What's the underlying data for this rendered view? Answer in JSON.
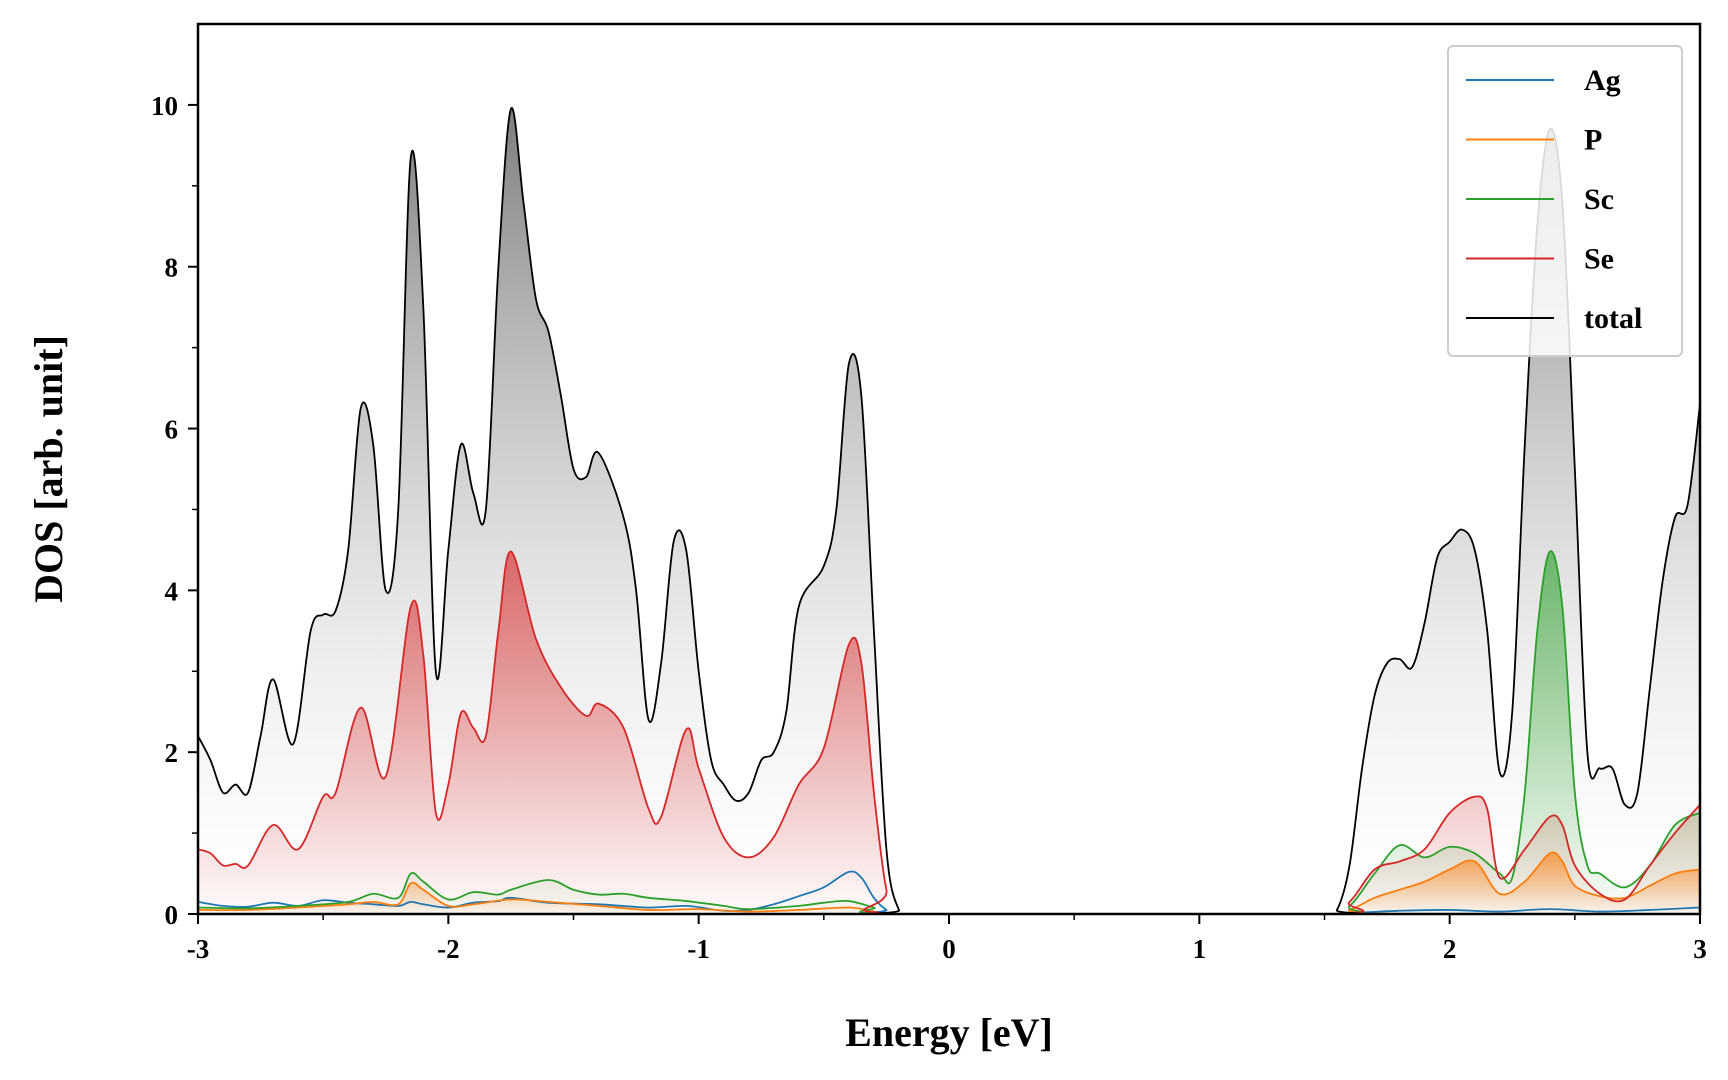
{
  "chart_data": {
    "type": "area",
    "xlabel": "Energy [eV]",
    "ylabel": "DOS [arb. unit]",
    "xlim": [
      -3,
      3
    ],
    "ylim": [
      0,
      11
    ],
    "x_ticks": [
      -3,
      -2,
      -1,
      0,
      1,
      2,
      3
    ],
    "x_tick_labels": [
      "-3",
      "-2",
      "-1",
      "0",
      "1",
      "2",
      "3"
    ],
    "y_ticks": [
      0,
      2,
      4,
      6,
      8,
      10
    ],
    "y_tick_labels": [
      "0",
      "2",
      "4",
      "6",
      "8",
      "10"
    ],
    "grid": false,
    "legend_position": "top-right",
    "series": [
      {
        "name": "Ag",
        "color": "#1f77b4",
        "filled": false,
        "points": [
          [
            -3.0,
            0.15
          ],
          [
            -2.9,
            0.1
          ],
          [
            -2.8,
            0.09
          ],
          [
            -2.7,
            0.14
          ],
          [
            -2.6,
            0.1
          ],
          [
            -2.5,
            0.17
          ],
          [
            -2.4,
            0.14
          ],
          [
            -2.3,
            0.12
          ],
          [
            -2.2,
            0.1
          ],
          [
            -2.15,
            0.15
          ],
          [
            -2.1,
            0.12
          ],
          [
            -2.0,
            0.08
          ],
          [
            -1.9,
            0.14
          ],
          [
            -1.8,
            0.16
          ],
          [
            -1.75,
            0.2
          ],
          [
            -1.6,
            0.14
          ],
          [
            -1.4,
            0.12
          ],
          [
            -1.2,
            0.08
          ],
          [
            -1.05,
            0.1
          ],
          [
            -0.9,
            0.04
          ],
          [
            -0.8,
            0.05
          ],
          [
            -0.7,
            0.12
          ],
          [
            -0.6,
            0.22
          ],
          [
            -0.5,
            0.33
          ],
          [
            -0.4,
            0.52
          ],
          [
            -0.35,
            0.45
          ],
          [
            -0.3,
            0.2
          ],
          [
            -0.25,
            0.05
          ],
          [
            -0.2,
            0.0
          ],
          [
            1.5,
            0.0
          ],
          [
            1.6,
            0.01
          ],
          [
            1.8,
            0.04
          ],
          [
            2.0,
            0.05
          ],
          [
            2.2,
            0.03
          ],
          [
            2.4,
            0.06
          ],
          [
            2.6,
            0.03
          ],
          [
            2.8,
            0.05
          ],
          [
            3.0,
            0.08
          ]
        ]
      },
      {
        "name": "P",
        "color": "#ff7f0e",
        "filled": true,
        "points": [
          [
            -3.0,
            0.05
          ],
          [
            -2.8,
            0.05
          ],
          [
            -2.6,
            0.08
          ],
          [
            -2.4,
            0.12
          ],
          [
            -2.3,
            0.15
          ],
          [
            -2.2,
            0.12
          ],
          [
            -2.15,
            0.38
          ],
          [
            -2.1,
            0.3
          ],
          [
            -2.0,
            0.1
          ],
          [
            -1.9,
            0.12
          ],
          [
            -1.75,
            0.18
          ],
          [
            -1.6,
            0.15
          ],
          [
            -1.4,
            0.1
          ],
          [
            -1.2,
            0.05
          ],
          [
            -1.0,
            0.06
          ],
          [
            -0.8,
            0.03
          ],
          [
            -0.6,
            0.05
          ],
          [
            -0.4,
            0.08
          ],
          [
            -0.3,
            0.03
          ],
          [
            -0.2,
            0.0
          ],
          [
            1.5,
            0.0
          ],
          [
            1.6,
            0.05
          ],
          [
            1.7,
            0.2
          ],
          [
            1.8,
            0.3
          ],
          [
            1.9,
            0.4
          ],
          [
            2.0,
            0.55
          ],
          [
            2.1,
            0.65
          ],
          [
            2.2,
            0.25
          ],
          [
            2.3,
            0.4
          ],
          [
            2.4,
            0.75
          ],
          [
            2.45,
            0.65
          ],
          [
            2.5,
            0.35
          ],
          [
            2.6,
            0.22
          ],
          [
            2.7,
            0.2
          ],
          [
            2.8,
            0.35
          ],
          [
            2.9,
            0.5
          ],
          [
            3.0,
            0.55
          ]
        ]
      },
      {
        "name": "Sc",
        "color": "#2ca02c",
        "filled": true,
        "points": [
          [
            -3.0,
            0.08
          ],
          [
            -2.8,
            0.07
          ],
          [
            -2.6,
            0.1
          ],
          [
            -2.4,
            0.15
          ],
          [
            -2.3,
            0.25
          ],
          [
            -2.2,
            0.2
          ],
          [
            -2.15,
            0.5
          ],
          [
            -2.1,
            0.4
          ],
          [
            -2.0,
            0.18
          ],
          [
            -1.9,
            0.27
          ],
          [
            -1.8,
            0.24
          ],
          [
            -1.75,
            0.3
          ],
          [
            -1.6,
            0.42
          ],
          [
            -1.5,
            0.3
          ],
          [
            -1.4,
            0.24
          ],
          [
            -1.3,
            0.25
          ],
          [
            -1.2,
            0.2
          ],
          [
            -1.05,
            0.16
          ],
          [
            -0.9,
            0.1
          ],
          [
            -0.8,
            0.06
          ],
          [
            -0.6,
            0.1
          ],
          [
            -0.5,
            0.14
          ],
          [
            -0.4,
            0.16
          ],
          [
            -0.3,
            0.08
          ],
          [
            -0.2,
            0.0
          ],
          [
            1.5,
            0.0
          ],
          [
            1.6,
            0.1
          ],
          [
            1.7,
            0.5
          ],
          [
            1.8,
            0.85
          ],
          [
            1.9,
            0.7
          ],
          [
            2.0,
            0.83
          ],
          [
            2.1,
            0.75
          ],
          [
            2.2,
            0.5
          ],
          [
            2.25,
            0.45
          ],
          [
            2.3,
            1.5
          ],
          [
            2.35,
            3.5
          ],
          [
            2.4,
            4.48
          ],
          [
            2.45,
            3.8
          ],
          [
            2.5,
            1.5
          ],
          [
            2.55,
            0.6
          ],
          [
            2.6,
            0.5
          ],
          [
            2.7,
            0.33
          ],
          [
            2.8,
            0.6
          ],
          [
            2.9,
            1.1
          ],
          [
            3.0,
            1.25
          ]
        ]
      },
      {
        "name": "Se",
        "color": "#d62728",
        "filled": true,
        "points": [
          [
            -3.0,
            0.8
          ],
          [
            -2.95,
            0.75
          ],
          [
            -2.9,
            0.6
          ],
          [
            -2.85,
            0.62
          ],
          [
            -2.8,
            0.6
          ],
          [
            -2.7,
            1.1
          ],
          [
            -2.6,
            0.8
          ],
          [
            -2.5,
            1.45
          ],
          [
            -2.45,
            1.5
          ],
          [
            -2.35,
            2.55
          ],
          [
            -2.25,
            1.7
          ],
          [
            -2.15,
            3.8
          ],
          [
            -2.1,
            3.2
          ],
          [
            -2.05,
            1.25
          ],
          [
            -2.0,
            1.6
          ],
          [
            -1.95,
            2.48
          ],
          [
            -1.9,
            2.3
          ],
          [
            -1.85,
            2.2
          ],
          [
            -1.8,
            3.5
          ],
          [
            -1.75,
            4.48
          ],
          [
            -1.65,
            3.4
          ],
          [
            -1.55,
            2.8
          ],
          [
            -1.45,
            2.45
          ],
          [
            -1.4,
            2.6
          ],
          [
            -1.3,
            2.3
          ],
          [
            -1.2,
            1.3
          ],
          [
            -1.15,
            1.2
          ],
          [
            -1.05,
            2.28
          ],
          [
            -1.0,
            1.8
          ],
          [
            -0.9,
            0.95
          ],
          [
            -0.8,
            0.7
          ],
          [
            -0.7,
            0.95
          ],
          [
            -0.6,
            1.6
          ],
          [
            -0.5,
            2.05
          ],
          [
            -0.4,
            3.33
          ],
          [
            -0.35,
            3.1
          ],
          [
            -0.3,
            1.5
          ],
          [
            -0.25,
            0.3
          ],
          [
            -0.2,
            0.0
          ],
          [
            1.5,
            0.0
          ],
          [
            1.6,
            0.15
          ],
          [
            1.7,
            0.55
          ],
          [
            1.8,
            0.65
          ],
          [
            1.9,
            0.8
          ],
          [
            2.0,
            1.25
          ],
          [
            2.1,
            1.45
          ],
          [
            2.15,
            1.3
          ],
          [
            2.2,
            0.45
          ],
          [
            2.3,
            0.8
          ],
          [
            2.4,
            1.2
          ],
          [
            2.45,
            1.1
          ],
          [
            2.5,
            0.6
          ],
          [
            2.6,
            0.25
          ],
          [
            2.7,
            0.18
          ],
          [
            2.8,
            0.6
          ],
          [
            2.9,
            1.0
          ],
          [
            3.0,
            1.35
          ]
        ]
      },
      {
        "name": "total",
        "color": "#000000",
        "filled": true,
        "points": [
          [
            -3.0,
            2.2
          ],
          [
            -2.95,
            1.9
          ],
          [
            -2.9,
            1.5
          ],
          [
            -2.85,
            1.6
          ],
          [
            -2.8,
            1.5
          ],
          [
            -2.75,
            2.2
          ],
          [
            -2.7,
            2.9
          ],
          [
            -2.62,
            2.1
          ],
          [
            -2.55,
            3.5
          ],
          [
            -2.5,
            3.7
          ],
          [
            -2.45,
            3.75
          ],
          [
            -2.4,
            4.5
          ],
          [
            -2.35,
            6.25
          ],
          [
            -2.3,
            5.8
          ],
          [
            -2.25,
            4.0
          ],
          [
            -2.2,
            5.0
          ],
          [
            -2.15,
            9.35
          ],
          [
            -2.1,
            7.5
          ],
          [
            -2.05,
            3.0
          ],
          [
            -2.0,
            4.5
          ],
          [
            -1.95,
            5.8
          ],
          [
            -1.9,
            5.2
          ],
          [
            -1.85,
            5.0
          ],
          [
            -1.8,
            8.0
          ],
          [
            -1.75,
            9.95
          ],
          [
            -1.7,
            8.8
          ],
          [
            -1.65,
            7.6
          ],
          [
            -1.6,
            7.2
          ],
          [
            -1.55,
            6.4
          ],
          [
            -1.5,
            5.5
          ],
          [
            -1.45,
            5.4
          ],
          [
            -1.4,
            5.7
          ],
          [
            -1.3,
            4.9
          ],
          [
            -1.25,
            4.0
          ],
          [
            -1.2,
            2.4
          ],
          [
            -1.15,
            3.1
          ],
          [
            -1.1,
            4.6
          ],
          [
            -1.05,
            4.5
          ],
          [
            -1.0,
            3.0
          ],
          [
            -0.95,
            1.9
          ],
          [
            -0.9,
            1.6
          ],
          [
            -0.85,
            1.4
          ],
          [
            -0.8,
            1.5
          ],
          [
            -0.75,
            1.9
          ],
          [
            -0.7,
            2.0
          ],
          [
            -0.65,
            2.5
          ],
          [
            -0.6,
            3.8
          ],
          [
            -0.5,
            4.3
          ],
          [
            -0.45,
            5.0
          ],
          [
            -0.4,
            6.8
          ],
          [
            -0.35,
            6.4
          ],
          [
            -0.3,
            3.5
          ],
          [
            -0.25,
            0.8
          ],
          [
            -0.2,
            0.05
          ],
          [
            -0.15,
            0.0
          ],
          [
            1.5,
            0.0
          ],
          [
            1.55,
            0.05
          ],
          [
            1.6,
            0.6
          ],
          [
            1.65,
            1.8
          ],
          [
            1.7,
            2.7
          ],
          [
            1.75,
            3.1
          ],
          [
            1.8,
            3.15
          ],
          [
            1.85,
            3.05
          ],
          [
            1.9,
            3.6
          ],
          [
            1.95,
            4.4
          ],
          [
            2.0,
            4.6
          ],
          [
            2.05,
            4.75
          ],
          [
            2.1,
            4.5
          ],
          [
            2.15,
            3.5
          ],
          [
            2.2,
            1.75
          ],
          [
            2.25,
            2.5
          ],
          [
            2.3,
            5.8
          ],
          [
            2.35,
            8.5
          ],
          [
            2.4,
            9.7
          ],
          [
            2.45,
            8.8
          ],
          [
            2.5,
            5.5
          ],
          [
            2.55,
            2.0
          ],
          [
            2.6,
            1.8
          ],
          [
            2.65,
            1.8
          ],
          [
            2.7,
            1.35
          ],
          [
            2.75,
            1.5
          ],
          [
            2.8,
            2.8
          ],
          [
            2.85,
            4.1
          ],
          [
            2.9,
            4.9
          ],
          [
            2.95,
            5.05
          ],
          [
            3.0,
            6.3
          ]
        ]
      }
    ]
  }
}
